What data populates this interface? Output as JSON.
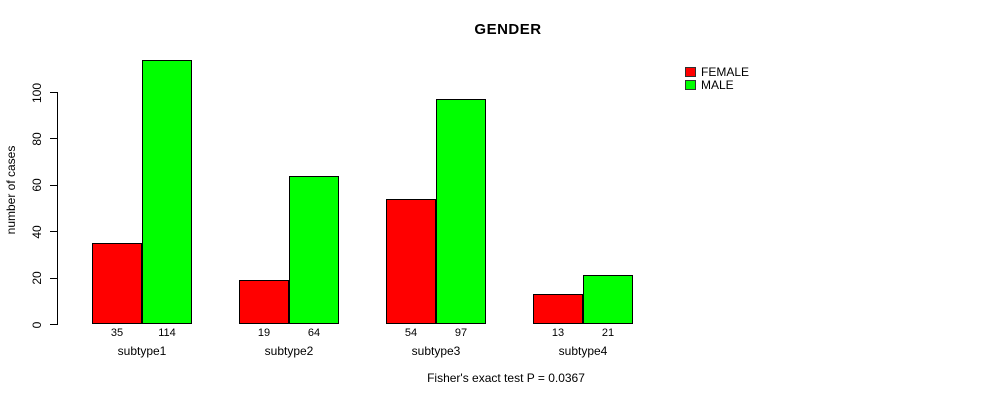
{
  "chart_data": {
    "type": "bar",
    "title": "GENDER",
    "ylabel": "number of cases",
    "xlabel": "",
    "caption": "Fisher's exact test P = 0.0367",
    "categories": [
      "subtype1",
      "subtype2",
      "subtype3",
      "subtype4"
    ],
    "series": [
      {
        "name": "FEMALE",
        "color": "#ff0000",
        "values": [
          35,
          19,
          54,
          13
        ]
      },
      {
        "name": "MALE",
        "color": "#00ff00",
        "values": [
          114,
          64,
          97,
          21
        ]
      }
    ],
    "y_ticks": [
      0,
      20,
      40,
      60,
      80,
      100
    ],
    "ylim": [
      0,
      114
    ],
    "bar_value_labels_shown": true,
    "legend_position": "top-right",
    "grid": false,
    "background_color": "#ffffff",
    "bar_border_color": "#000000"
  }
}
